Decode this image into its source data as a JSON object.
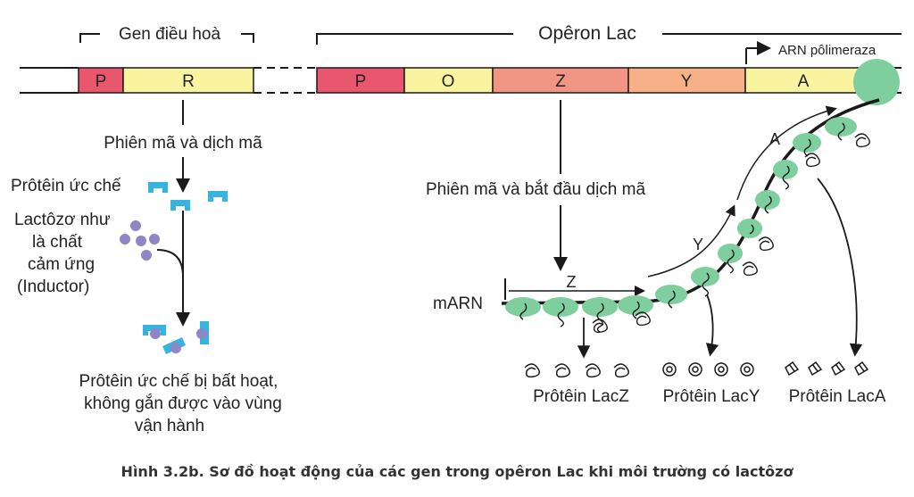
{
  "colors": {
    "promoter": "#e8576e",
    "regulator": "#faf3a0",
    "operator": "#faf3a0",
    "gene_z": "#f19685",
    "gene_y": "#f7b088",
    "gene_a": "#faf3a0",
    "ribosome": "#7fcf9e",
    "repressor": "#35b4e0",
    "lactose": "#8f86c6",
    "line": "#1a1a1a"
  },
  "labels": {
    "regulator_gene": "Gen điều hoà",
    "operon": "Opêron Lac",
    "segment_p_reg": "P",
    "segment_r": "R",
    "segment_p": "P",
    "segment_o": "O",
    "segment_z": "Z",
    "segment_y": "Y",
    "segment_a": "A",
    "rna_polymerase": "ARN pôlimeraza",
    "transcription_translation": "Phiên mã và dịch mã",
    "repressor_protein": "Prôtêin ức chế",
    "lactose_line1": "Lactôzơ như",
    "lactose_line2": "là chất",
    "lactose_line3": "cảm ứng",
    "lactose_line4": "(Inductor)",
    "inactive_line1": "Prôtêin ức chế bị bất hoạt,",
    "inactive_line2": "không gắn được vào vùng",
    "inactive_line3": "vận hành",
    "transcription_start": "Phiên mã và bắt đầu dịch mã",
    "mrna": "mARN",
    "mrna_z": "Z",
    "mrna_y": "Y",
    "mrna_a": "A",
    "protein_z": "Prôtêin LacZ",
    "protein_y": "Prôtêin LacY",
    "protein_a": "Prôtêin LacA"
  },
  "caption": "Hình 3.2b. Sơ đồ hoạt động của các gen trong opêron Lac khi môi trường có lactôzơ"
}
